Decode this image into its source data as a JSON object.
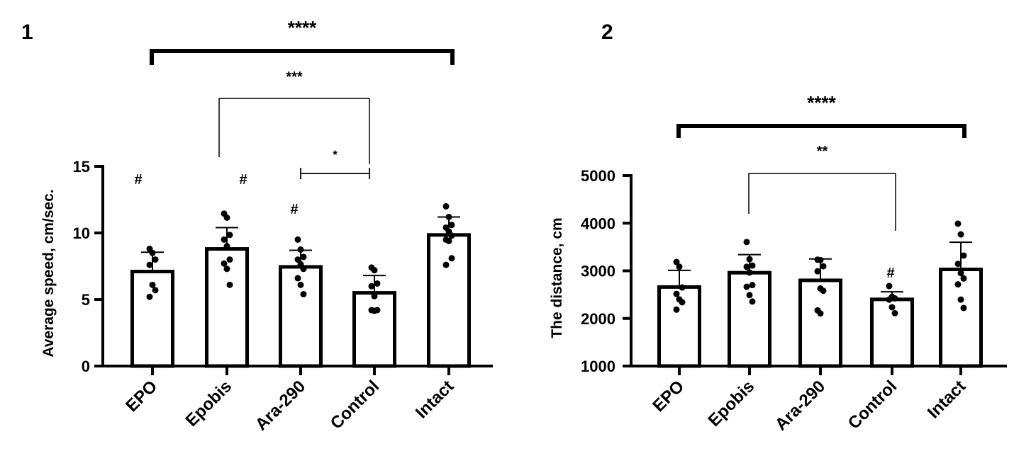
{
  "chart_data": [
    {
      "type": "bar",
      "panel_label": "1",
      "title": "",
      "xlabel": "",
      "ylabel": "Average speed, cm/sec.",
      "ylim": [
        0,
        15
      ],
      "yticks": [
        "0",
        "5",
        "10",
        "15"
      ],
      "ytick_values": [
        0,
        5,
        10,
        15
      ],
      "categories": [
        "EPO",
        "Epobis",
        "Ara-290",
        "Control",
        "Intact"
      ],
      "values": [
        7.1,
        8.8,
        7.45,
        5.5,
        9.85
      ],
      "error_upper": [
        8.55,
        10.4,
        8.7,
        6.8,
        11.2
      ],
      "points": [
        [
          8.8,
          8.5,
          8.0,
          7.6,
          6.1,
          5.7,
          5.2
        ],
        [
          11.45,
          11.15,
          9.85,
          9.5,
          9.0,
          8.0,
          7.7,
          7.3,
          6.1
        ],
        [
          9.5,
          8.75,
          8.2,
          8.0,
          7.65,
          7.3,
          6.6,
          6.1,
          5.4
        ],
        [
          7.4,
          7.2,
          6.2,
          6.0,
          5.25,
          4.2,
          4.2,
          4.15
        ],
        [
          12.0,
          11.2,
          10.6,
          10.4,
          10.1,
          9.8,
          9.5,
          9.4,
          8.1,
          7.6
        ]
      ],
      "hash_marks": [
        {
          "category": "EPO",
          "label": "#"
        },
        {
          "category": "Epobis",
          "label": "#"
        },
        {
          "category": "Ara-290",
          "label": "#"
        }
      ],
      "significance": [
        {
          "from": "EPO",
          "to": "Intact",
          "label": "****"
        },
        {
          "from": "Epobis",
          "to": "Control",
          "label": "***"
        },
        {
          "from": "Ara-290",
          "to": "Control",
          "label": "*"
        }
      ]
    },
    {
      "type": "bar",
      "panel_label": "2",
      "title": "",
      "xlabel": "",
      "ylabel": "The distance, cm",
      "ylim": [
        1000,
        5000
      ],
      "yticks": [
        "1000",
        "2000",
        "3000",
        "4000",
        "5000"
      ],
      "ytick_values": [
        1000,
        2000,
        3000,
        4000,
        5000
      ],
      "categories": [
        "EPO",
        "Epobis",
        "Ara-290",
        "Control",
        "Intact"
      ],
      "values": [
        2660,
        2960,
        2800,
        2400,
        3030
      ],
      "error_upper": [
        3010,
        3340,
        3250,
        2560,
        3600
      ],
      "points": [
        [
          3185,
          3085,
          2650,
          2515,
          2400,
          2340,
          2185
        ],
        [
          3605,
          3245,
          3110,
          3085,
          2965,
          2700,
          2665,
          2490,
          2355
        ],
        [
          3235,
          3225,
          3095,
          2990,
          2630,
          2580,
          2170,
          2105
        ],
        [
          2680,
          2455,
          2420,
          2395,
          2235,
          2110
        ],
        [
          3990,
          3765,
          3320,
          3145,
          2950,
          2840,
          2715,
          2395,
          2220
        ]
      ],
      "hash_marks": [
        {
          "category": "Control",
          "label": "#"
        }
      ],
      "significance": [
        {
          "from": "EPO",
          "to": "Intact",
          "label": "****"
        },
        {
          "from": "Epobis",
          "to": "Control",
          "label": "**"
        }
      ]
    }
  ]
}
